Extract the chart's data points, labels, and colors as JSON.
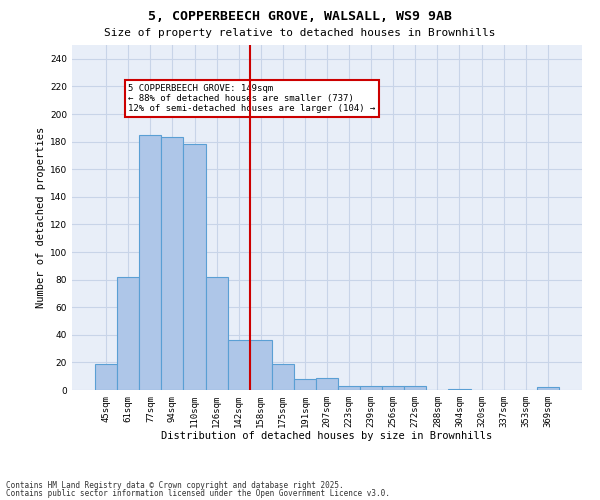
{
  "title1": "5, COPPERBEECH GROVE, WALSALL, WS9 9AB",
  "title2": "Size of property relative to detached houses in Brownhills",
  "xlabel": "Distribution of detached houses by size in Brownhills",
  "ylabel": "Number of detached properties",
  "categories": [
    "45sqm",
    "61sqm",
    "77sqm",
    "94sqm",
    "110sqm",
    "126sqm",
    "142sqm",
    "158sqm",
    "175sqm",
    "191sqm",
    "207sqm",
    "223sqm",
    "239sqm",
    "256sqm",
    "272sqm",
    "288sqm",
    "304sqm",
    "320sqm",
    "337sqm",
    "353sqm",
    "369sqm"
  ],
  "values": [
    19,
    82,
    185,
    183,
    178,
    82,
    36,
    36,
    19,
    8,
    9,
    3,
    3,
    3,
    3,
    0,
    1,
    0,
    0,
    0,
    2
  ],
  "bar_color": "#aec6e8",
  "bar_edge_color": "#5a9fd4",
  "vline_color": "#cc0000",
  "annotation_text": "5 COPPERBEECH GROVE: 149sqm\n← 88% of detached houses are smaller (737)\n12% of semi-detached houses are larger (104) →",
  "annotation_box_color": "#cc0000",
  "annotation_bg": "white",
  "ylim": [
    0,
    250
  ],
  "yticks": [
    0,
    20,
    40,
    60,
    80,
    100,
    120,
    140,
    160,
    180,
    200,
    220,
    240
  ],
  "grid_color": "#c8d4e8",
  "bg_color": "#e8eef8",
  "footnote1": "Contains HM Land Registry data © Crown copyright and database right 2025.",
  "footnote2": "Contains public sector information licensed under the Open Government Licence v3.0.",
  "title1_fontsize": 9.5,
  "title2_fontsize": 8,
  "xlabel_fontsize": 7.5,
  "ylabel_fontsize": 7.5,
  "tick_fontsize": 6.5,
  "annot_fontsize": 6.5,
  "footnote_fontsize": 5.5
}
